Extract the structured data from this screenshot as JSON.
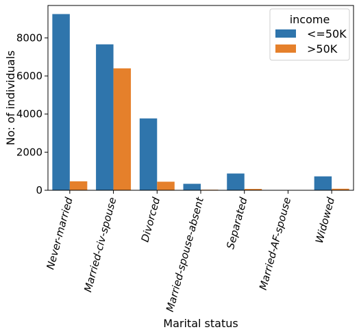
{
  "chart_data": {
    "type": "bar",
    "xlabel": "Marital status",
    "ylabel": "No: of individuals",
    "categories": [
      "Never-married",
      "Married-civ-spouse",
      "Divorced",
      "Married-spouse-absent",
      "Separated",
      "Married-AF-spouse",
      "Widowed"
    ],
    "series": [
      {
        "name": "<=50K",
        "color": "#2f75ac",
        "values": [
          9250,
          7660,
          3770,
          340,
          880,
          15,
          730
        ]
      },
      {
        "name": ">50K",
        "color": "#e5802b",
        "values": [
          470,
          6400,
          450,
          30,
          70,
          10,
          80
        ]
      }
    ],
    "ylim": [
      0,
      9700
    ],
    "yticks": [
      "0",
      "2000",
      "4000",
      "6000",
      "8000"
    ],
    "grid": false,
    "legend": {
      "title": "income",
      "placement": "top-right"
    }
  }
}
